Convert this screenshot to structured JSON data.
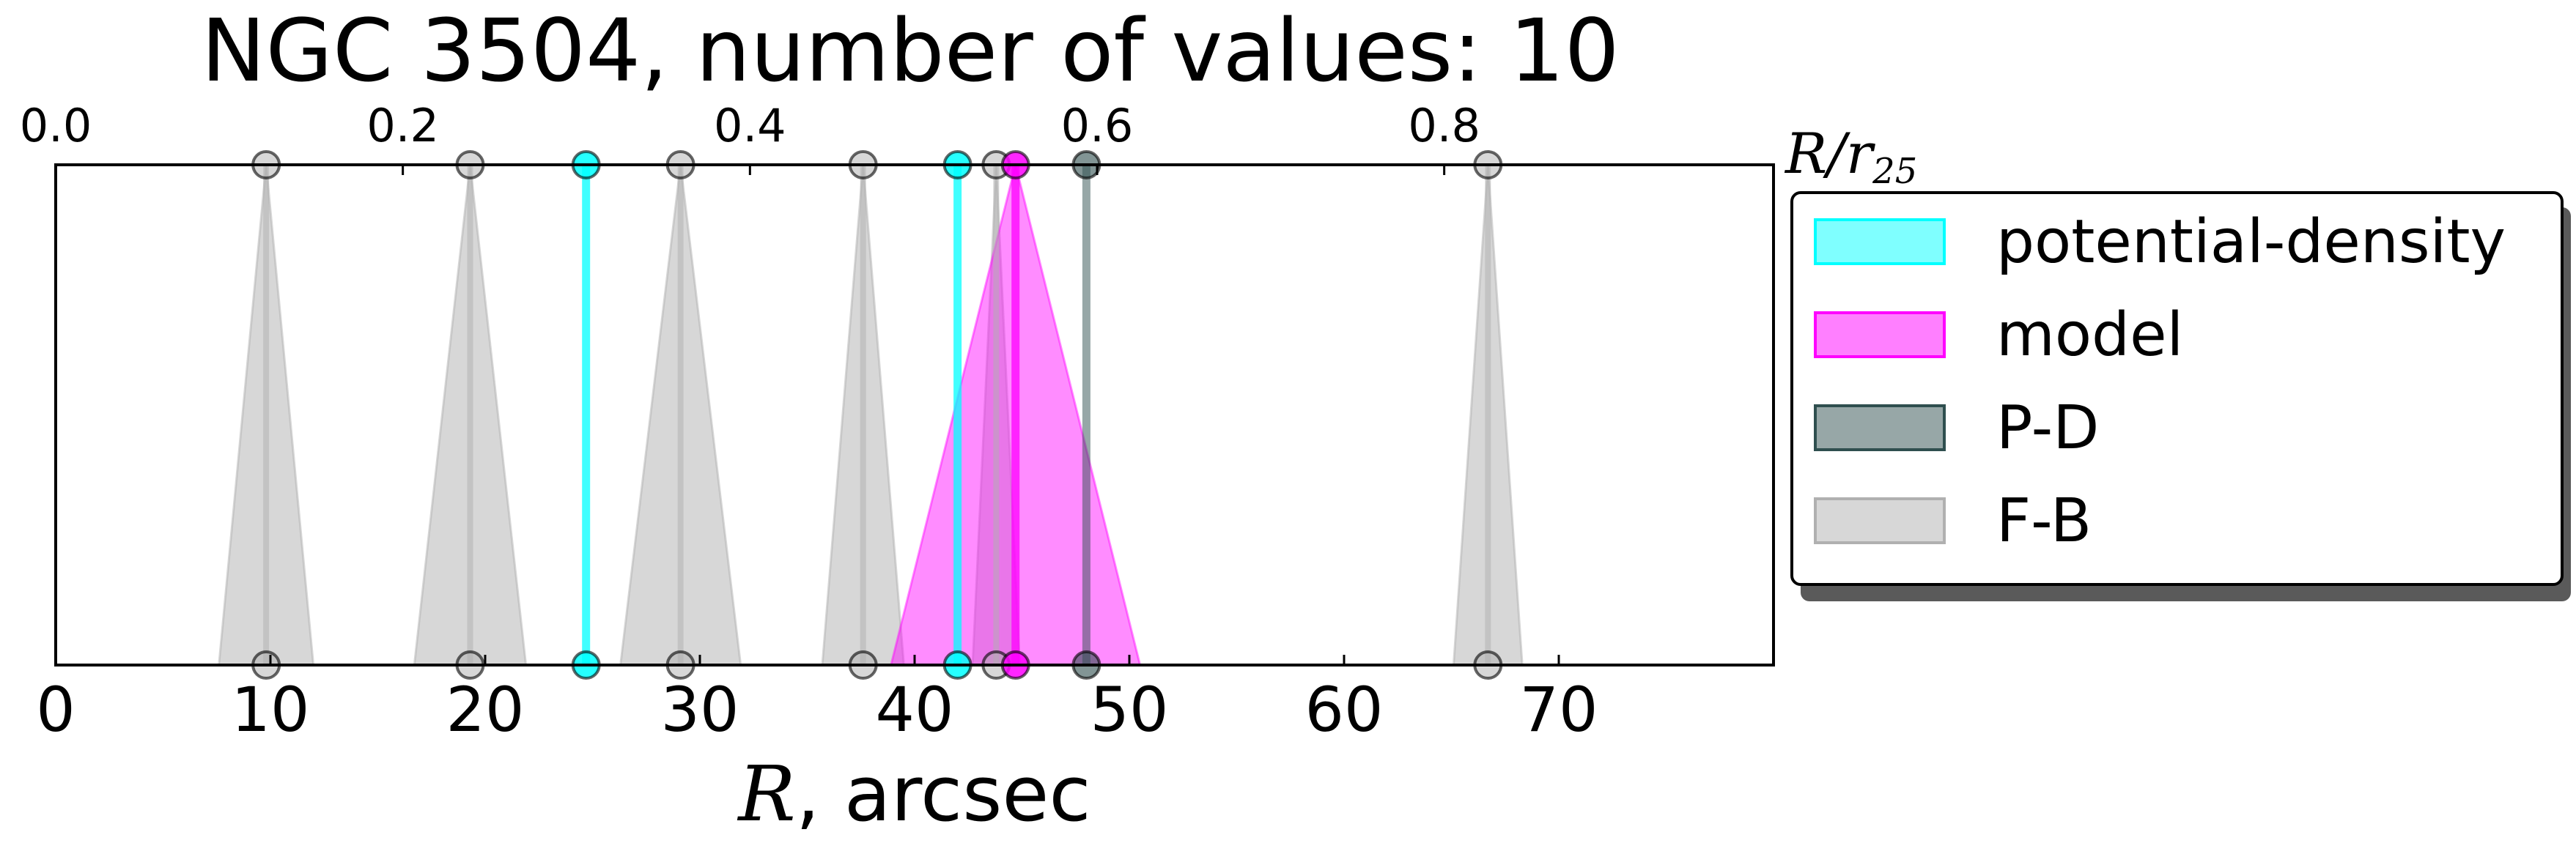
{
  "chart_data": {
    "type": "scatter",
    "title": "NGC 3504, number of values: 10",
    "xlabel_var": "R",
    "xlabel_unit": ", arcsec",
    "xlim": [
      0,
      80
    ],
    "xticks": [
      0,
      10,
      20,
      30,
      40,
      50,
      60,
      70
    ],
    "top_axis": {
      "label_var": "R/r",
      "label_sub": "25",
      "r25_arcsec": 80.83,
      "ticks": [
        0.0,
        0.2,
        0.4,
        0.6,
        0.8
      ],
      "tick_labels": [
        "0.0",
        "0.2",
        "0.4",
        "0.6",
        "0.8"
      ]
    },
    "legend_position": "outside-right",
    "legend": [
      {
        "label": "potential-density",
        "color": "#00ffff"
      },
      {
        "label": "model",
        "color": "#ff00ff"
      },
      {
        "label": "P-D",
        "color": "#2f4f4f"
      },
      {
        "label": "F-B",
        "color": "#b0b0b0"
      }
    ],
    "series": [
      {
        "name": "potential-density",
        "values": [
          {
            "r": 24.7,
            "err": 0
          },
          {
            "r": 42.0,
            "err": 0
          }
        ]
      },
      {
        "name": "model",
        "values": [
          {
            "r": 44.7,
            "err": 5.8
          }
        ]
      },
      {
        "name": "P-D",
        "values": [
          {
            "r": 48.0,
            "err": 0
          }
        ]
      },
      {
        "name": "F-B",
        "values": [
          {
            "r": 9.8,
            "err": 2.2
          },
          {
            "r": 19.3,
            "err": 2.6
          },
          {
            "r": 29.1,
            "err": 2.8
          },
          {
            "r": 37.6,
            "err": 1.9
          },
          {
            "r": 43.8,
            "err": 1.1
          },
          {
            "r": 66.7,
            "err": 1.6
          }
        ]
      }
    ]
  }
}
